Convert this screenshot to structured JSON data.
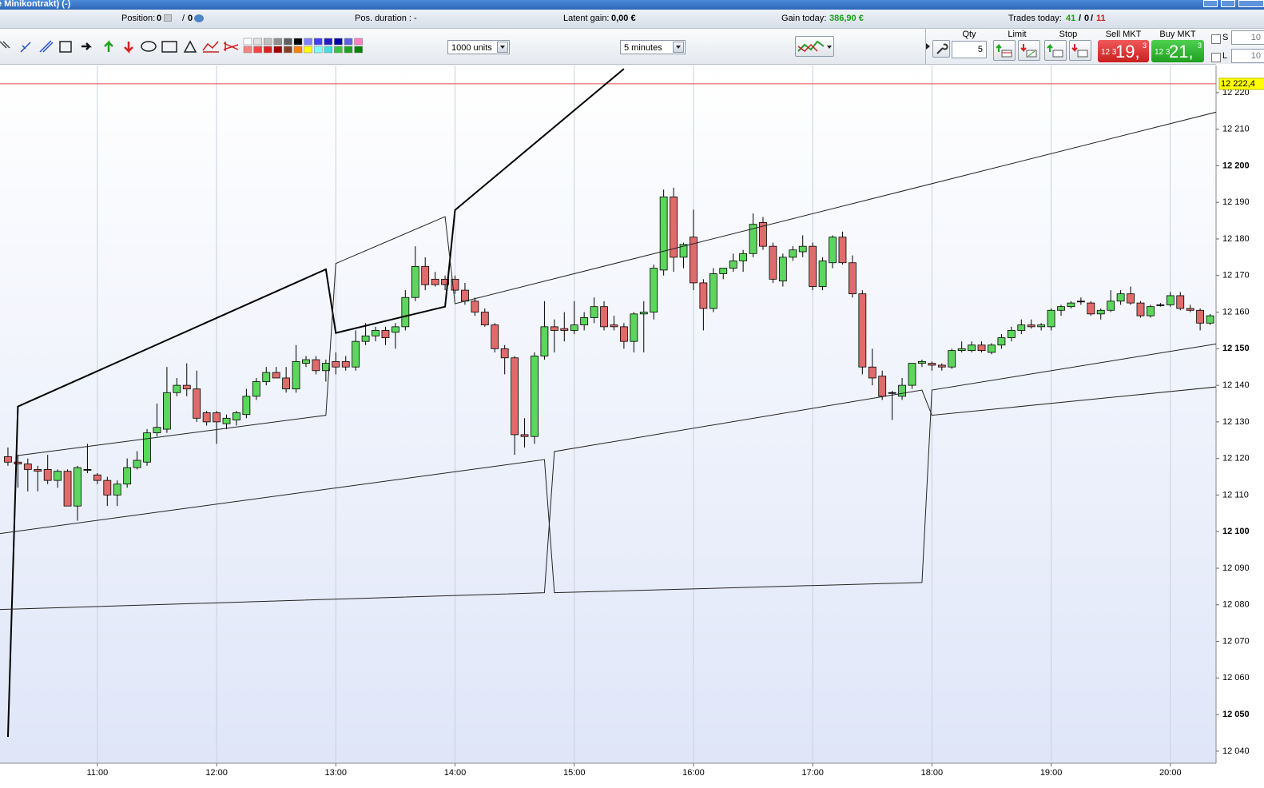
{
  "window": {
    "title": "e Minikontrakt) (-)"
  },
  "status_bar": {
    "position": {
      "label": "Position:",
      "long": "0",
      "separator": "/",
      "short": "0"
    },
    "duration": {
      "label": "Pos. duration :",
      "value": "-"
    },
    "latent_gain": {
      "label": "Latent gain:",
      "value": "0,00 €"
    },
    "gain_today": {
      "label": "Gain today:",
      "value": "386,90 €"
    },
    "trades_today": {
      "label": "Trades today:",
      "won": "41",
      "separator": "/",
      "even": "0",
      "lost": "11"
    }
  },
  "toolbar": {
    "quantity_select": "1000 units",
    "interval_select": "5 minutes"
  },
  "order_panel": {
    "qty_label": "Qty",
    "qty_value": "5",
    "limit_label": "Limit",
    "stop_label": "Stop",
    "sell_label": "Sell MKT",
    "sell_price": {
      "prefix": "12 3",
      "main": "19,",
      "suffix": "3"
    },
    "buy_label": "Buy MKT",
    "buy_price": {
      "prefix": "12 3",
      "main": "21,",
      "suffix": "3"
    },
    "s_label": "S",
    "s_value": "10",
    "l_label": "L",
    "l_value": "10"
  },
  "chart_data": {
    "type": "candlestick",
    "up_color": "#5cd65c",
    "down_color": "#e06b6b",
    "x": [
      "10:15",
      "10:20",
      "10:25",
      "10:30",
      "10:35",
      "10:40",
      "10:45",
      "10:50",
      "10:55",
      "11:00",
      "11:05",
      "11:10",
      "11:15",
      "11:20",
      "11:25",
      "11:30",
      "11:35",
      "11:40",
      "11:45",
      "11:50",
      "11:55",
      "12:00",
      "12:05",
      "12:10",
      "12:15",
      "12:20",
      "12:25",
      "12:30",
      "12:35",
      "12:40",
      "12:45",
      "12:50",
      "12:55",
      "13:00",
      "13:05",
      "13:10",
      "13:15",
      "13:20",
      "13:25",
      "13:30",
      "13:35",
      "13:40",
      "13:45",
      "13:50",
      "13:55",
      "14:00",
      "14:05",
      "14:10",
      "14:15",
      "14:20",
      "14:25",
      "14:30",
      "14:35",
      "14:40",
      "14:45",
      "14:50",
      "14:55",
      "15:00",
      "15:05",
      "15:10",
      "15:15",
      "15:20",
      "15:25",
      "15:30",
      "15:35",
      "15:40",
      "15:45",
      "15:50",
      "15:55",
      "16:00",
      "16:05",
      "16:10",
      "16:15",
      "16:20",
      "16:25",
      "16:30",
      "16:35",
      "16:40",
      "16:45",
      "16:50",
      "16:55",
      "17:00",
      "17:05",
      "17:10",
      "17:15",
      "17:20",
      "17:25",
      "17:30",
      "17:35",
      "17:40",
      "17:45",
      "17:50",
      "17:55",
      "18:00",
      "18:05",
      "18:10",
      "18:15",
      "18:20",
      "18:25",
      "18:30",
      "18:35",
      "18:40",
      "18:45",
      "18:50",
      "18:55",
      "19:00",
      "19:05",
      "19:10",
      "19:15",
      "19:20",
      "19:25",
      "19:30",
      "19:35",
      "19:40",
      "19:45",
      "19:50",
      "19:55",
      "20:00",
      "20:05",
      "20:10",
      "20:15",
      "20:20"
    ],
    "open": [
      12120.5,
      12119,
      12118.5,
      12117,
      12117,
      12114,
      12116.5,
      12107,
      12117,
      12115.5,
      12114,
      12110,
      12113,
      12117.5,
      12119,
      12127,
      12128,
      12138,
      12140,
      12139,
      12132.5,
      12132.5,
      12129.5,
      12130.5,
      12132,
      12137,
      12141,
      12143.5,
      12142,
      12139,
      12146,
      12147,
      12144,
      12146.5,
      12146.5,
      12145,
      12152,
      12153.5,
      12155,
      12154.5,
      12156,
      12164,
      12172.5,
      12169,
      12169,
      12169,
      12166,
      12163,
      12160,
      12156.5,
      12150,
      12147.5,
      12126.5,
      12126,
      12148,
      12156,
      12155.5,
      12155,
      12156.5,
      12158.5,
      12161.5,
      12156.5,
      12156,
      12152,
      12159.5,
      12160,
      12171.5,
      12191.5,
      12175,
      12180.5,
      12168,
      12161,
      12170.5,
      12172,
      12174,
      12176,
      12184.5,
      12178,
      12168.5,
      12175,
      12176.5,
      12178,
      12167,
      12173.5,
      12180.5,
      12173.5,
      12165,
      12145,
      12142.5,
      12138,
      12137,
      12140,
      12146,
      12146,
      12145.5,
      12145,
      12149.5,
      12149.5,
      12151,
      12149,
      12151,
      12153,
      12155,
      12156.5,
      12156,
      12156,
      12160.5,
      12161.5,
      12163,
      12162.5,
      12159.5,
      12160.5,
      12163,
      12165,
      12162.5,
      12159,
      12162,
      12162,
      12164.5,
      12161,
      12160.5,
      12157
    ],
    "high": [
      12123,
      12121,
      12120,
      12118,
      12121,
      12117,
      12117,
      12118,
      12124,
      12116,
      12115,
      12114,
      12120,
      12122,
      12128,
      12135,
      12145,
      12142,
      12146,
      12144,
      12133,
      12133,
      12132,
      12133,
      12139,
      12142,
      12145,
      12145,
      12145,
      12151,
      12148,
      12148,
      12147,
      12149,
      12148,
      12155,
      12157,
      12156,
      12156,
      12157,
      12166,
      12178,
      12175,
      12171,
      12170,
      12170,
      12168,
      12164,
      12161,
      12157,
      12151,
      12148,
      12131,
      12149,
      12163,
      12158,
      12160,
      12163,
      12160,
      12164,
      12163,
      12159,
      12157,
      12160,
      12163,
      12173,
      12193.5,
      12194,
      12179,
      12188,
      12169,
      12172,
      12172,
      12176,
      12177,
      12187,
      12186,
      12179,
      12176,
      12178,
      12181,
      12179,
      12175,
      12181,
      12182,
      12175.5,
      12166,
      12150,
      12144,
      12138.5,
      12142,
      12146,
      12147,
      12146.5,
      12146,
      12150,
      12152,
      12152,
      12152,
      12151.5,
      12154,
      12156,
      12158,
      12158,
      12157,
      12161,
      12162,
      12163,
      12164,
      12163,
      12161,
      12166,
      12166,
      12167,
      12163,
      12162,
      12162.5,
      12165.5,
      12165.5,
      12162,
      12161,
      12159.5
    ],
    "low": [
      12118,
      12112,
      12111,
      12111,
      12113,
      12112,
      12107,
      12103,
      12116,
      12113,
      12107,
      12107,
      12112,
      12117,
      12118,
      12126,
      12127,
      12137,
      12137,
      12130,
      12129,
      12124,
      12128,
      12129,
      12131,
      12136,
      12140,
      12142,
      12138,
      12138,
      12145,
      12143,
      12141,
      12143,
      12144,
      12144,
      12151,
      12152,
      12151,
      12150,
      12155,
      12163,
      12166,
      12167,
      12166,
      12165,
      12162,
      12159,
      12156,
      12149,
      12143,
      12121,
      12123,
      12124,
      12147,
      12149,
      12152,
      12154,
      12155,
      12157,
      12155,
      12155,
      12150,
      12149,
      12149,
      12158,
      12170,
      12171,
      12172,
      12166,
      12155,
      12160,
      12169,
      12171,
      12171,
      12175,
      12177,
      12168,
      12167,
      12174,
      12175,
      12166,
      12166,
      12172,
      12173,
      12164,
      12143,
      12140,
      12136,
      12130.5,
      12136,
      12139,
      12145,
      12144,
      12144,
      12144.5,
      12149,
      12149,
      12149,
      12148.5,
      12150,
      12152,
      12154,
      12155.5,
      12155,
      12155,
      12159,
      12161,
      12162,
      12159,
      12158,
      12160,
      12162,
      12162,
      12158.5,
      12158.5,
      12161.5,
      12161.5,
      12160.5,
      12160,
      12155,
      12156.5
    ],
    "close": [
      12119,
      12118.5,
      12117,
      12116.5,
      12114,
      12116.5,
      12107,
      12117.5,
      12117,
      12114,
      12110,
      12113,
      12117.5,
      12119.5,
      12127,
      12128.5,
      12138,
      12140,
      12139,
      12131,
      12130,
      12130,
      12131,
      12132.5,
      12137,
      12141,
      12143.5,
      12142,
      12139,
      12146.5,
      12147,
      12144,
      12146,
      12145,
      12145,
      12152,
      12153.5,
      12155,
      12153,
      12156,
      12164,
      12172.5,
      12167.5,
      12167.5,
      12167.5,
      12166,
      12163,
      12160,
      12156.5,
      12150,
      12147.5,
      12126.5,
      12126,
      12148,
      12156,
      12155,
      12155,
      12156.5,
      12158.5,
      12161.5,
      12156,
      12156,
      12152,
      12159.5,
      12160,
      12172,
      12191.5,
      12175,
      12178.5,
      12168,
      12161,
      12170.5,
      12172,
      12174,
      12176,
      12184,
      12178,
      12169,
      12175,
      12177,
      12178,
      12167,
      12174,
      12180.5,
      12173.5,
      12165,
      12145,
      12142,
      12137,
      12138,
      12140,
      12146,
      12146.5,
      12145.5,
      12145,
      12149.5,
      12150,
      12151,
      12149.5,
      12151,
      12153,
      12155,
      12156.5,
      12156,
      12156.5,
      12160.5,
      12161.5,
      12162.5,
      12163,
      12159.5,
      12160.5,
      12163,
      12165,
      12162.5,
      12159,
      12161.5,
      12162,
      12164.5,
      12161,
      12160.5,
      12157,
      12159
    ],
    "lines": [
      {
        "color": "#000000",
        "width": 2,
        "x": [
          "10:15",
          "10:20",
          "12:55",
          "13:00",
          "13:55",
          "14:00",
          "15:25"
        ],
        "values": [
          12043.9,
          12134.2,
          12171.7,
          12154.3,
          12161.5,
          12187.9,
          12226.5
        ]
      },
      {
        "color": "#222222",
        "width": 1,
        "x": [
          "10:20",
          "12:55",
          "13:00",
          "13:55",
          "14:00",
          "20:24"
        ],
        "values": [
          12120.8,
          12131.8,
          12173.3,
          12186.1,
          12162.3,
          12214.8
        ]
      },
      {
        "color": "#222222",
        "width": 1,
        "x": [
          "10:10",
          "14:45",
          "14:50",
          "17:55",
          "18:00",
          "20:24"
        ],
        "values": [
          12099.4,
          12119.7,
          12083.3,
          12086.1,
          12138.7,
          12151.4
        ]
      },
      {
        "color": "#222222",
        "width": 1,
        "x": [
          "10:10",
          "14:45",
          "14:50",
          "17:55",
          "18:00",
          "20:24"
        ],
        "values": [
          12078.7,
          12083.3,
          12121.9,
          12138.7,
          12131.8,
          12139.6
        ]
      }
    ],
    "price_marker": {
      "value": 12222.4,
      "label": "12 222,4"
    },
    "xlim": [
      "10:11",
      "20:23"
    ],
    "xticks": [
      "11:00",
      "12:00",
      "13:00",
      "14:00",
      "15:00",
      "16:00",
      "17:00",
      "18:00",
      "19:00",
      "20:00"
    ],
    "ylim": [
      12036.7,
      12227.4
    ],
    "yticks": [
      {
        "value": 12040,
        "label": "12 040"
      },
      {
        "value": 12050,
        "label": "12 050"
      },
      {
        "value": 12060,
        "label": "12 060"
      },
      {
        "value": 12070,
        "label": "12 070"
      },
      {
        "value": 12080,
        "label": "12 080"
      },
      {
        "value": 12090,
        "label": "12 090"
      },
      {
        "value": 12100,
        "label": "12 100"
      },
      {
        "value": 12110,
        "label": "12 110"
      },
      {
        "value": 12120,
        "label": "12 120"
      },
      {
        "value": 12130,
        "label": "12 130"
      },
      {
        "value": 12140,
        "label": "12 140"
      },
      {
        "value": 12150,
        "label": "12 150"
      },
      {
        "value": 12160,
        "label": "12 160"
      },
      {
        "value": 12170,
        "label": "12 170"
      },
      {
        "value": 12180,
        "label": "12 180"
      },
      {
        "value": 12190,
        "label": "12 190"
      },
      {
        "value": 12200,
        "label": "12 200"
      },
      {
        "value": 12210,
        "label": "12 210"
      },
      {
        "value": 12220,
        "label": "12 220"
      }
    ],
    "grid": true
  }
}
